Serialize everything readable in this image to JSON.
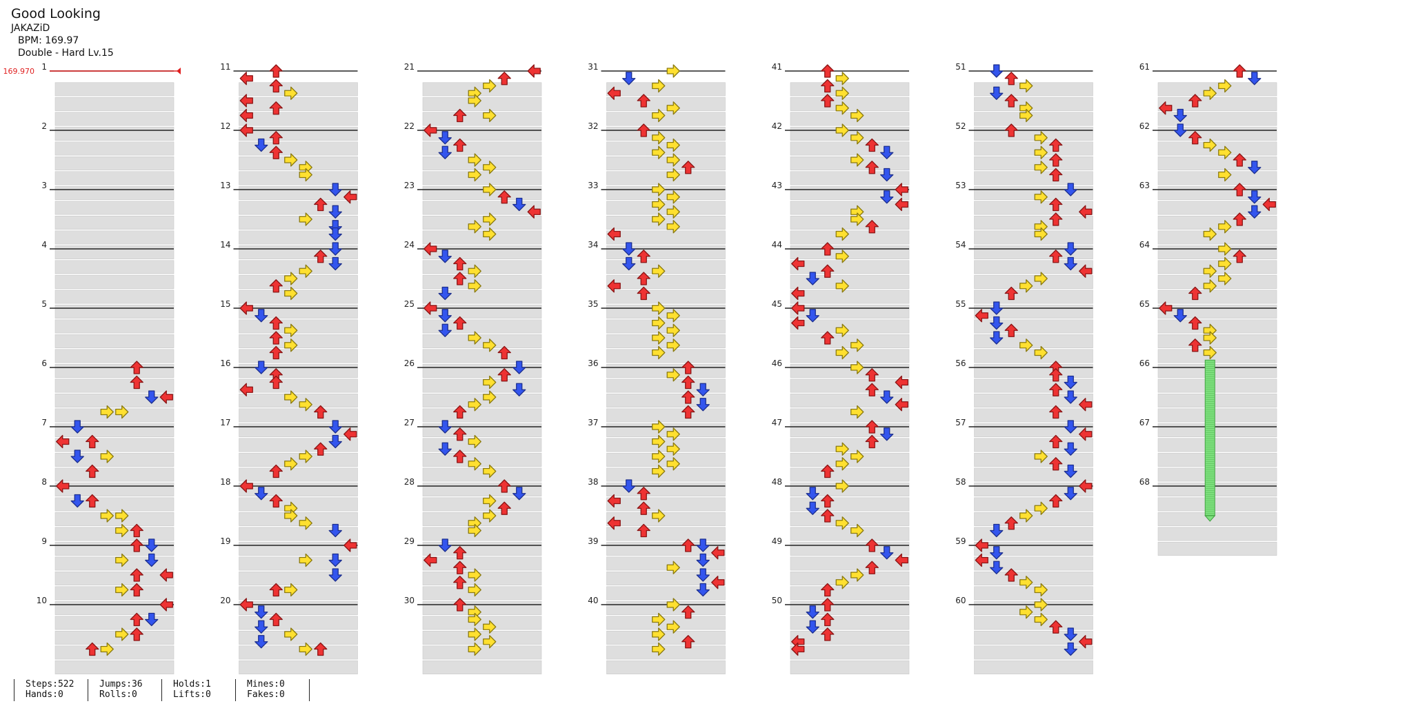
{
  "song": {
    "title": "Good Looking",
    "artist": "JAKAZiD",
    "bpm_label": "BPM: 169.97",
    "chart_label": "Double - Hard Lv.15",
    "bpm_marker": "169.970"
  },
  "measures_per_column": 10,
  "total_measures": 68,
  "colors": {
    "left": "#ee3333",
    "down": "#3355ee",
    "up": "#ee3333",
    "right": "#ffe030",
    "hold": "#7ee07e",
    "stripe": "#dedede",
    "bpm": "#e02020"
  },
  "note_pattern": [
    "left",
    "down",
    "up",
    "right",
    "right",
    "up",
    "down",
    "left"
  ],
  "notes": [
    [
      6,
      0.0,
      5
    ],
    [
      6,
      0.25,
      5
    ],
    [
      6,
      0.5,
      6
    ],
    [
      6,
      0.5,
      7
    ],
    [
      6,
      0.75,
      4
    ],
    [
      6,
      0.75,
      3
    ],
    [
      7,
      0.0,
      1
    ],
    [
      7,
      0.25,
      0
    ],
    [
      7,
      0.25,
      2
    ],
    [
      7,
      0.5,
      1
    ],
    [
      7,
      0.5,
      3
    ],
    [
      7,
      0.75,
      2
    ],
    [
      8,
      0.0,
      0
    ],
    [
      8,
      0.25,
      1
    ],
    [
      8,
      0.25,
      2
    ],
    [
      8,
      0.5,
      3
    ],
    [
      8,
      0.5,
      4
    ],
    [
      8,
      0.75,
      5
    ],
    [
      8,
      0.75,
      4
    ],
    [
      9,
      0.0,
      5
    ],
    [
      9,
      0.0,
      6
    ],
    [
      9,
      0.25,
      4
    ],
    [
      9,
      0.25,
      6
    ],
    [
      9,
      0.5,
      7
    ],
    [
      9,
      0.5,
      5
    ],
    [
      9,
      0.75,
      4
    ],
    [
      9,
      0.75,
      5
    ],
    [
      10,
      0.0,
      7
    ],
    [
      10,
      0.25,
      6
    ],
    [
      10,
      0.25,
      5
    ],
    [
      10,
      0.5,
      5
    ],
    [
      10,
      0.5,
      4
    ],
    [
      10,
      0.75,
      3
    ],
    [
      10,
      0.75,
      2
    ],
    [
      11,
      0.0,
      2
    ],
    [
      11,
      0.125,
      0
    ],
    [
      11,
      0.25,
      2
    ],
    [
      11,
      0.375,
      3
    ],
    [
      11,
      0.5,
      0
    ],
    [
      11,
      0.625,
      2
    ],
    [
      11,
      0.75,
      0
    ],
    [
      12,
      0.0,
      0
    ],
    [
      12,
      0.125,
      2
    ],
    [
      12,
      0.25,
      1
    ],
    [
      12,
      0.375,
      2
    ],
    [
      12,
      0.5,
      3
    ],
    [
      12,
      0.625,
      4
    ],
    [
      12,
      0.75,
      4
    ],
    [
      13,
      0.0,
      6
    ],
    [
      13,
      0.125,
      7
    ],
    [
      13,
      0.25,
      5
    ],
    [
      13,
      0.375,
      6
    ],
    [
      13,
      0.5,
      4
    ],
    [
      13,
      0.625,
      6
    ],
    [
      13,
      0.75,
      6
    ],
    [
      14,
      0.0,
      6
    ],
    [
      14,
      0.125,
      5
    ],
    [
      14,
      0.25,
      6
    ],
    [
      14,
      0.375,
      4
    ],
    [
      14,
      0.5,
      3
    ],
    [
      14,
      0.625,
      2
    ],
    [
      14,
      0.75,
      3
    ],
    [
      15,
      0.0,
      0
    ],
    [
      15,
      0.125,
      1
    ],
    [
      15,
      0.25,
      2
    ],
    [
      15,
      0.375,
      3
    ],
    [
      15,
      0.5,
      2
    ],
    [
      15,
      0.625,
      3
    ],
    [
      15,
      0.75,
      2
    ],
    [
      16,
      0.0,
      1
    ],
    [
      16,
      0.125,
      2
    ],
    [
      16,
      0.25,
      2
    ],
    [
      16,
      0.375,
      0
    ],
    [
      16,
      0.5,
      3
    ],
    [
      16,
      0.625,
      4
    ],
    [
      16,
      0.75,
      5
    ],
    [
      17,
      0.0,
      6
    ],
    [
      17,
      0.125,
      7
    ],
    [
      17,
      0.25,
      6
    ],
    [
      17,
      0.375,
      5
    ],
    [
      17,
      0.5,
      4
    ],
    [
      17,
      0.625,
      3
    ],
    [
      17,
      0.75,
      2
    ],
    [
      18,
      0.0,
      0
    ],
    [
      18,
      0.125,
      1
    ],
    [
      18,
      0.25,
      2
    ],
    [
      18,
      0.375,
      3
    ],
    [
      18,
      0.5,
      3
    ],
    [
      18,
      0.625,
      4
    ],
    [
      18,
      0.75,
      6
    ],
    [
      19,
      0.0,
      7
    ],
    [
      19,
      0.25,
      6
    ],
    [
      19,
      0.25,
      4
    ],
    [
      19,
      0.5,
      6
    ],
    [
      19,
      0.75,
      3
    ],
    [
      19,
      0.75,
      2
    ],
    [
      20,
      0.0,
      0
    ],
    [
      20,
      0.125,
      1
    ],
    [
      20,
      0.25,
      2
    ],
    [
      20,
      0.375,
      1
    ],
    [
      20,
      0.5,
      3
    ],
    [
      20,
      0.625,
      1
    ],
    [
      20,
      0.75,
      4
    ],
    [
      20,
      0.75,
      5
    ],
    [
      21,
      0.0,
      7
    ],
    [
      21,
      0.125,
      5
    ],
    [
      21,
      0.25,
      4
    ],
    [
      21,
      0.375,
      3
    ],
    [
      21,
      0.5,
      3
    ],
    [
      21,
      0.75,
      2
    ],
    [
      21,
      0.75,
      4
    ],
    [
      22,
      0.0,
      0
    ],
    [
      22,
      0.125,
      1
    ],
    [
      22,
      0.25,
      2
    ],
    [
      22,
      0.375,
      1
    ],
    [
      22,
      0.5,
      3
    ],
    [
      22,
      0.625,
      4
    ],
    [
      22,
      0.75,
      3
    ],
    [
      23,
      0.0,
      4
    ],
    [
      23,
      0.125,
      5
    ],
    [
      23,
      0.25,
      6
    ],
    [
      23,
      0.375,
      7
    ],
    [
      23,
      0.5,
      4
    ],
    [
      23,
      0.625,
      3
    ],
    [
      23,
      0.75,
      4
    ],
    [
      24,
      0.0,
      0
    ],
    [
      24,
      0.125,
      1
    ],
    [
      24,
      0.25,
      2
    ],
    [
      24,
      0.375,
      3
    ],
    [
      24,
      0.5,
      2
    ],
    [
      24,
      0.625,
      3
    ],
    [
      24,
      0.75,
      1
    ],
    [
      25,
      0.0,
      0
    ],
    [
      25,
      0.125,
      1
    ],
    [
      25,
      0.25,
      2
    ],
    [
      25,
      0.375,
      1
    ],
    [
      25,
      0.5,
      3
    ],
    [
      25,
      0.625,
      4
    ],
    [
      25,
      0.75,
      5
    ],
    [
      26,
      0.0,
      6
    ],
    [
      26,
      0.125,
      5
    ],
    [
      26,
      0.25,
      4
    ],
    [
      26,
      0.375,
      6
    ],
    [
      26,
      0.5,
      4
    ],
    [
      26,
      0.625,
      3
    ],
    [
      26,
      0.75,
      2
    ],
    [
      27,
      0.0,
      1
    ],
    [
      27,
      0.125,
      2
    ],
    [
      27,
      0.25,
      3
    ],
    [
      27,
      0.375,
      1
    ],
    [
      27,
      0.5,
      2
    ],
    [
      27,
      0.625,
      3
    ],
    [
      27,
      0.75,
      4
    ],
    [
      28,
      0.0,
      5
    ],
    [
      28,
      0.125,
      6
    ],
    [
      28,
      0.25,
      4
    ],
    [
      28,
      0.375,
      5
    ],
    [
      28,
      0.5,
      4
    ],
    [
      28,
      0.625,
      3
    ],
    [
      28,
      0.75,
      3
    ],
    [
      29,
      0.0,
      1
    ],
    [
      29,
      0.125,
      2
    ],
    [
      29,
      0.25,
      0
    ],
    [
      29,
      0.375,
      2
    ],
    [
      29,
      0.5,
      3
    ],
    [
      29,
      0.625,
      2
    ],
    [
      29,
      0.75,
      3
    ],
    [
      30,
      0.0,
      2
    ],
    [
      30,
      0.125,
      3
    ],
    [
      30,
      0.25,
      3
    ],
    [
      30,
      0.375,
      4
    ],
    [
      30,
      0.5,
      3
    ],
    [
      30,
      0.625,
      4
    ],
    [
      30,
      0.75,
      3
    ],
    [
      31,
      0.0,
      4
    ],
    [
      31,
      0.125,
      1
    ],
    [
      31,
      0.25,
      3
    ],
    [
      31,
      0.375,
      0
    ],
    [
      31,
      0.5,
      2
    ],
    [
      31,
      0.625,
      4
    ],
    [
      31,
      0.75,
      3
    ],
    [
      32,
      0.0,
      2
    ],
    [
      32,
      0.125,
      3
    ],
    [
      32,
      0.25,
      4
    ],
    [
      32,
      0.375,
      3
    ],
    [
      32,
      0.5,
      4
    ],
    [
      32,
      0.625,
      5
    ],
    [
      32,
      0.75,
      4
    ],
    [
      33,
      0.0,
      3
    ],
    [
      33,
      0.125,
      4
    ],
    [
      33,
      0.25,
      3
    ],
    [
      33,
      0.375,
      4
    ],
    [
      33,
      0.5,
      3
    ],
    [
      33,
      0.625,
      4
    ],
    [
      33,
      0.75,
      0
    ],
    [
      34,
      0.0,
      1
    ],
    [
      34,
      0.125,
      2
    ],
    [
      34,
      0.25,
      1
    ],
    [
      34,
      0.375,
      3
    ],
    [
      34,
      0.5,
      2
    ],
    [
      34,
      0.625,
      0
    ],
    [
      34,
      0.75,
      2
    ],
    [
      35,
      0.0,
      3
    ],
    [
      35,
      0.125,
      4
    ],
    [
      35,
      0.25,
      3
    ],
    [
      35,
      0.375,
      4
    ],
    [
      35,
      0.5,
      3
    ],
    [
      35,
      0.625,
      4
    ],
    [
      35,
      0.75,
      3
    ],
    [
      36,
      0.0,
      5
    ],
    [
      36,
      0.125,
      4
    ],
    [
      36,
      0.25,
      5
    ],
    [
      36,
      0.375,
      6
    ],
    [
      36,
      0.5,
      5
    ],
    [
      36,
      0.625,
      6
    ],
    [
      36,
      0.75,
      5
    ],
    [
      37,
      0.0,
      3
    ],
    [
      37,
      0.125,
      4
    ],
    [
      37,
      0.25,
      3
    ],
    [
      37,
      0.375,
      4
    ],
    [
      37,
      0.5,
      3
    ],
    [
      37,
      0.625,
      4
    ],
    [
      37,
      0.75,
      3
    ],
    [
      38,
      0.0,
      1
    ],
    [
      38,
      0.125,
      2
    ],
    [
      38,
      0.25,
      0
    ],
    [
      38,
      0.375,
      2
    ],
    [
      38,
      0.5,
      3
    ],
    [
      38,
      0.625,
      0
    ],
    [
      38,
      0.75,
      2
    ],
    [
      39,
      0.0,
      5
    ],
    [
      39,
      0.0,
      6
    ],
    [
      39,
      0.125,
      7
    ],
    [
      39,
      0.25,
      6
    ],
    [
      39,
      0.375,
      4
    ],
    [
      39,
      0.5,
      6
    ],
    [
      39,
      0.625,
      7
    ],
    [
      39,
      0.75,
      6
    ],
    [
      40,
      0.0,
      4
    ],
    [
      40,
      0.125,
      5
    ],
    [
      40,
      0.25,
      3
    ],
    [
      40,
      0.375,
      4
    ],
    [
      40,
      0.5,
      3
    ],
    [
      40,
      0.625,
      5
    ],
    [
      40,
      0.75,
      3
    ],
    [
      41,
      0.0,
      2
    ],
    [
      41,
      0.125,
      3
    ],
    [
      41,
      0.25,
      2
    ],
    [
      41,
      0.375,
      3
    ],
    [
      41,
      0.5,
      2
    ],
    [
      41,
      0.625,
      3
    ],
    [
      41,
      0.75,
      4
    ],
    [
      42,
      0.0,
      3
    ],
    [
      42,
      0.125,
      4
    ],
    [
      42,
      0.25,
      5
    ],
    [
      42,
      0.375,
      6
    ],
    [
      42,
      0.5,
      4
    ],
    [
      42,
      0.625,
      5
    ],
    [
      42,
      0.75,
      6
    ],
    [
      43,
      0.0,
      7
    ],
    [
      43,
      0.125,
      6
    ],
    [
      43,
      0.25,
      7
    ],
    [
      43,
      0.375,
      4
    ],
    [
      43,
      0.5,
      4
    ],
    [
      43,
      0.625,
      5
    ],
    [
      43,
      0.75,
      3
    ],
    [
      44,
      0.0,
      2
    ],
    [
      44,
      0.125,
      3
    ],
    [
      44,
      0.25,
      0
    ],
    [
      44,
      0.375,
      2
    ],
    [
      44,
      0.5,
      1
    ],
    [
      44,
      0.625,
      3
    ],
    [
      44,
      0.75,
      0
    ],
    [
      45,
      0.0,
      0
    ],
    [
      45,
      0.125,
      1
    ],
    [
      45,
      0.25,
      0
    ],
    [
      45,
      0.375,
      3
    ],
    [
      45,
      0.5,
      2
    ],
    [
      45,
      0.625,
      4
    ],
    [
      45,
      0.75,
      3
    ],
    [
      46,
      0.0,
      4
    ],
    [
      46,
      0.125,
      5
    ],
    [
      46,
      0.25,
      7
    ],
    [
      46,
      0.375,
      5
    ],
    [
      46,
      0.5,
      6
    ],
    [
      46,
      0.625,
      7
    ],
    [
      46,
      0.75,
      4
    ],
    [
      47,
      0.0,
      5
    ],
    [
      47,
      0.125,
      6
    ],
    [
      47,
      0.25,
      5
    ],
    [
      47,
      0.375,
      3
    ],
    [
      47,
      0.5,
      4
    ],
    [
      47,
      0.625,
      3
    ],
    [
      47,
      0.75,
      2
    ],
    [
      48,
      0.0,
      3
    ],
    [
      48,
      0.125,
      1
    ],
    [
      48,
      0.25,
      2
    ],
    [
      48,
      0.375,
      1
    ],
    [
      48,
      0.5,
      2
    ],
    [
      48,
      0.625,
      3
    ],
    [
      48,
      0.75,
      4
    ],
    [
      49,
      0.0,
      5
    ],
    [
      49,
      0.125,
      6
    ],
    [
      49,
      0.25,
      7
    ],
    [
      49,
      0.375,
      5
    ],
    [
      49,
      0.5,
      4
    ],
    [
      49,
      0.625,
      3
    ],
    [
      49,
      0.75,
      2
    ],
    [
      50,
      0.0,
      2
    ],
    [
      50,
      0.125,
      1
    ],
    [
      50,
      0.25,
      2
    ],
    [
      50,
      0.375,
      1
    ],
    [
      50,
      0.5,
      2
    ],
    [
      50,
      0.625,
      0
    ],
    [
      50,
      0.75,
      0
    ],
    [
      51,
      0.0,
      1
    ],
    [
      51,
      0.125,
      2
    ],
    [
      51,
      0.25,
      3
    ],
    [
      51,
      0.375,
      1
    ],
    [
      51,
      0.5,
      2
    ],
    [
      51,
      0.625,
      3
    ],
    [
      51,
      0.75,
      3
    ],
    [
      52,
      0.0,
      2
    ],
    [
      52,
      0.125,
      4
    ],
    [
      52,
      0.25,
      5
    ],
    [
      52,
      0.375,
      4
    ],
    [
      52,
      0.5,
      5
    ],
    [
      52,
      0.625,
      4
    ],
    [
      52,
      0.75,
      5
    ],
    [
      53,
      0.0,
      6
    ],
    [
      53,
      0.125,
      4
    ],
    [
      53,
      0.25,
      5
    ],
    [
      53,
      0.375,
      7
    ],
    [
      53,
      0.5,
      5
    ],
    [
      53,
      0.625,
      4
    ],
    [
      53,
      0.75,
      4
    ],
    [
      54,
      0.0,
      6
    ],
    [
      54,
      0.125,
      5
    ],
    [
      54,
      0.25,
      6
    ],
    [
      54,
      0.375,
      7
    ],
    [
      54,
      0.5,
      4
    ],
    [
      54,
      0.625,
      3
    ],
    [
      54,
      0.75,
      2
    ],
    [
      55,
      0.0,
      1
    ],
    [
      55,
      0.125,
      0
    ],
    [
      55,
      0.25,
      1
    ],
    [
      55,
      0.375,
      2
    ],
    [
      55,
      0.5,
      1
    ],
    [
      55,
      0.625,
      3
    ],
    [
      55,
      0.75,
      4
    ],
    [
      56,
      0.0,
      5
    ],
    [
      56,
      0.125,
      5
    ],
    [
      56,
      0.25,
      6
    ],
    [
      56,
      0.375,
      5
    ],
    [
      56,
      0.5,
      6
    ],
    [
      56,
      0.625,
      7
    ],
    [
      56,
      0.75,
      5
    ],
    [
      57,
      0.0,
      6
    ],
    [
      57,
      0.125,
      7
    ],
    [
      57,
      0.25,
      5
    ],
    [
      57,
      0.375,
      6
    ],
    [
      57,
      0.5,
      4
    ],
    [
      57,
      0.625,
      5
    ],
    [
      57,
      0.75,
      6
    ],
    [
      58,
      0.0,
      7
    ],
    [
      58,
      0.125,
      6
    ],
    [
      58,
      0.25,
      5
    ],
    [
      58,
      0.375,
      4
    ],
    [
      58,
      0.5,
      3
    ],
    [
      58,
      0.625,
      2
    ],
    [
      58,
      0.75,
      1
    ],
    [
      59,
      0.0,
      0
    ],
    [
      59,
      0.125,
      1
    ],
    [
      59,
      0.25,
      0
    ],
    [
      59,
      0.375,
      1
    ],
    [
      59,
      0.5,
      2
    ],
    [
      59,
      0.625,
      3
    ],
    [
      59,
      0.75,
      4
    ],
    [
      60,
      0.0,
      4
    ],
    [
      60,
      0.125,
      3
    ],
    [
      60,
      0.25,
      4
    ],
    [
      60,
      0.375,
      5
    ],
    [
      60,
      0.5,
      6
    ],
    [
      60,
      0.625,
      7
    ],
    [
      60,
      0.75,
      6
    ],
    [
      61,
      0.0,
      5
    ],
    [
      61,
      0.125,
      6
    ],
    [
      61,
      0.25,
      4
    ],
    [
      61,
      0.375,
      3
    ],
    [
      61,
      0.5,
      2
    ],
    [
      61,
      0.625,
      0
    ],
    [
      61,
      0.75,
      1
    ],
    [
      62,
      0.0,
      1
    ],
    [
      62,
      0.125,
      2
    ],
    [
      62,
      0.25,
      3
    ],
    [
      62,
      0.375,
      4
    ],
    [
      62,
      0.5,
      5
    ],
    [
      62,
      0.625,
      6
    ],
    [
      62,
      0.75,
      4
    ],
    [
      63,
      0.0,
      5
    ],
    [
      63,
      0.125,
      6
    ],
    [
      63,
      0.25,
      7
    ],
    [
      63,
      0.375,
      6
    ],
    [
      63,
      0.5,
      5
    ],
    [
      63,
      0.625,
      4
    ],
    [
      63,
      0.75,
      3
    ],
    [
      64,
      0.0,
      4
    ],
    [
      64,
      0.125,
      5
    ],
    [
      64,
      0.25,
      4
    ],
    [
      64,
      0.375,
      3
    ],
    [
      64,
      0.5,
      4
    ],
    [
      64,
      0.625,
      3
    ],
    [
      64,
      0.75,
      2
    ],
    [
      65,
      0.0,
      0
    ],
    [
      65,
      0.125,
      1
    ],
    [
      65,
      0.25,
      2
    ],
    [
      65,
      0.375,
      3
    ],
    [
      65,
      0.5,
      3
    ],
    [
      65,
      0.625,
      2
    ],
    [
      65,
      0.75,
      3
    ]
  ],
  "holds": [
    [
      65,
      0.875,
      68,
      0.5,
      3
    ]
  ],
  "stats": [
    [
      "Steps:522",
      "Hands:0"
    ],
    [
      "Jumps:36",
      "Rolls:0"
    ],
    [
      "Holds:1",
      "Lifts:0"
    ],
    [
      "Mines:0",
      "Fakes:0"
    ]
  ]
}
